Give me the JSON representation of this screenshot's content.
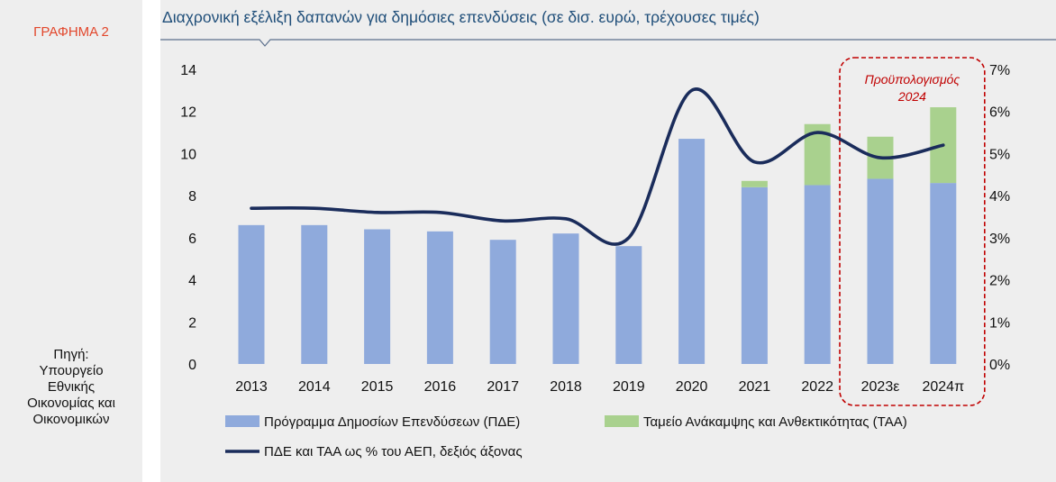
{
  "sidebar": {
    "figure_label": "ΓΡΑΦΗΜΑ 2",
    "source_text": "Πηγή:\nΥπουργείο\nΕθνικής\nΟικονομίας και\nΟικονομικών"
  },
  "colors": {
    "pde": "#8faadc",
    "taa": "#a9d18e",
    "line": "#1a2c5b",
    "accent": "#c00000",
    "title": "#1f4e79"
  },
  "chart_data": {
    "type": "bar",
    "title": "Διαχρονική εξέλιξη δαπανών για δημόσιες επενδύσεις (σε δισ. ευρώ, τρέχουσες τιμές)",
    "categories": [
      "2013",
      "2014",
      "2015",
      "2016",
      "2017",
      "2018",
      "2019",
      "2020",
      "2021",
      "2022",
      "2023ε",
      "2024π"
    ],
    "ylim": [
      0,
      14
    ],
    "y_ticks": [
      "0",
      "2",
      "4",
      "6",
      "8",
      "10",
      "12",
      "14"
    ],
    "y2lim": [
      0,
      7
    ],
    "y2_ticks": [
      "0%",
      "1%",
      "2%",
      "3%",
      "4%",
      "5%",
      "6%",
      "7%"
    ],
    "stacked": true,
    "grid": false,
    "series": [
      {
        "name": "Πρόγραμμα Δημοσίων Επενδύσεων (ΠΔΕ)",
        "kind": "bar",
        "axis": "left",
        "values": [
          6.6,
          6.6,
          6.4,
          6.3,
          5.9,
          6.2,
          5.6,
          10.7,
          8.4,
          8.5,
          8.8,
          8.6
        ]
      },
      {
        "name": "Ταμείο Ανάκαμψης και Ανθεκτικότητας (ΤΑΑ)",
        "kind": "bar",
        "axis": "left",
        "values": [
          0,
          0,
          0,
          0,
          0,
          0,
          0,
          0,
          0.3,
          2.9,
          2.0,
          3.6
        ]
      },
      {
        "name": "ΠΔΕ και ΤΑΑ ως % του ΑΕΠ, δεξιός άξονας",
        "kind": "line",
        "axis": "right",
        "values": [
          3.7,
          3.7,
          3.6,
          3.6,
          3.4,
          3.45,
          3.0,
          6.5,
          4.8,
          5.5,
          4.9,
          5.2
        ]
      }
    ],
    "annotation": {
      "text_line1": "Προϋπολογισμός",
      "text_line2": "2024",
      "covers": [
        "2023ε",
        "2024π"
      ]
    },
    "legend_position": "bottom"
  }
}
